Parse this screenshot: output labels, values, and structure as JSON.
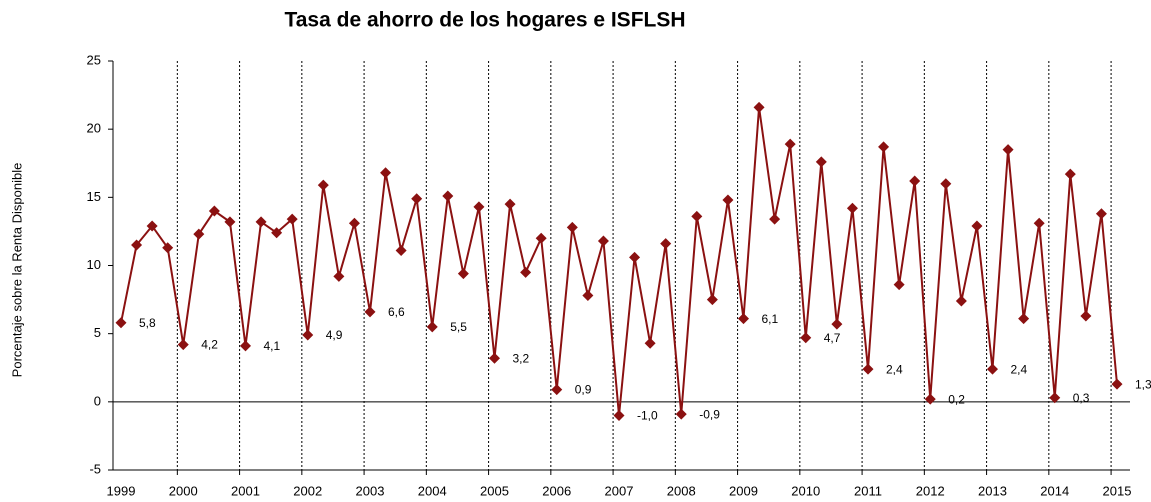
{
  "chart_data": {
    "type": "line",
    "title": "Tasa de ahorro de los hogares e ISFLSH",
    "y_label": "Porcentaje sobre la Renta Disponible",
    "categories": [
      "1999",
      null,
      null,
      null,
      "2000",
      null,
      null,
      null,
      "2001",
      null,
      null,
      null,
      "2002",
      null,
      null,
      null,
      "2003",
      null,
      null,
      null,
      "2004",
      null,
      null,
      null,
      "2005",
      null,
      null,
      null,
      "2006",
      null,
      null,
      null,
      "2007",
      null,
      null,
      null,
      "2008",
      null,
      null,
      null,
      "2009",
      null,
      null,
      null,
      "2010",
      null,
      null,
      null,
      "2011",
      null,
      null,
      null,
      "2012",
      null,
      null,
      null,
      "2013",
      null,
      null,
      null,
      "2014",
      null,
      null,
      null,
      "2015"
    ],
    "series": [
      {
        "name": "Tasa de ahorro",
        "color": "#8b1111",
        "values": [
          5.8,
          11.5,
          12.9,
          11.3,
          4.2,
          12.3,
          14.0,
          13.2,
          4.1,
          13.2,
          12.4,
          13.4,
          4.9,
          15.9,
          9.2,
          13.1,
          6.6,
          16.8,
          11.1,
          14.9,
          5.5,
          15.1,
          9.4,
          14.3,
          3.2,
          14.5,
          9.5,
          12.0,
          0.9,
          12.8,
          7.8,
          11.8,
          -1.0,
          10.6,
          4.3,
          11.6,
          -0.9,
          13.6,
          7.5,
          14.8,
          6.1,
          21.6,
          13.4,
          18.9,
          4.7,
          17.6,
          5.7,
          14.2,
          2.4,
          18.7,
          8.6,
          16.2,
          0.2,
          16.0,
          7.4,
          12.9,
          2.4,
          18.5,
          6.1,
          13.1,
          0.3,
          16.7,
          6.3,
          13.8,
          1.3
        ],
        "value_labels": [
          "5,8",
          null,
          null,
          null,
          "4,2",
          null,
          null,
          null,
          "4,1",
          null,
          null,
          null,
          "4,9",
          null,
          null,
          null,
          "6,6",
          null,
          null,
          null,
          "5,5",
          null,
          null,
          null,
          "3,2",
          null,
          null,
          null,
          "0,9",
          null,
          null,
          null,
          "-1,0",
          null,
          null,
          null,
          "-0,9",
          null,
          null,
          null,
          "6,1",
          null,
          null,
          null,
          "4,7",
          null,
          null,
          null,
          "2,4",
          null,
          null,
          null,
          "0,2",
          null,
          null,
          null,
          "2,4",
          null,
          null,
          null,
          "0,3",
          null,
          null,
          null,
          "1,3"
        ]
      }
    ],
    "ylim": [
      -5,
      25
    ],
    "yticks": [
      25,
      20,
      15,
      10,
      5,
      0,
      -5
    ],
    "grid": false
  }
}
